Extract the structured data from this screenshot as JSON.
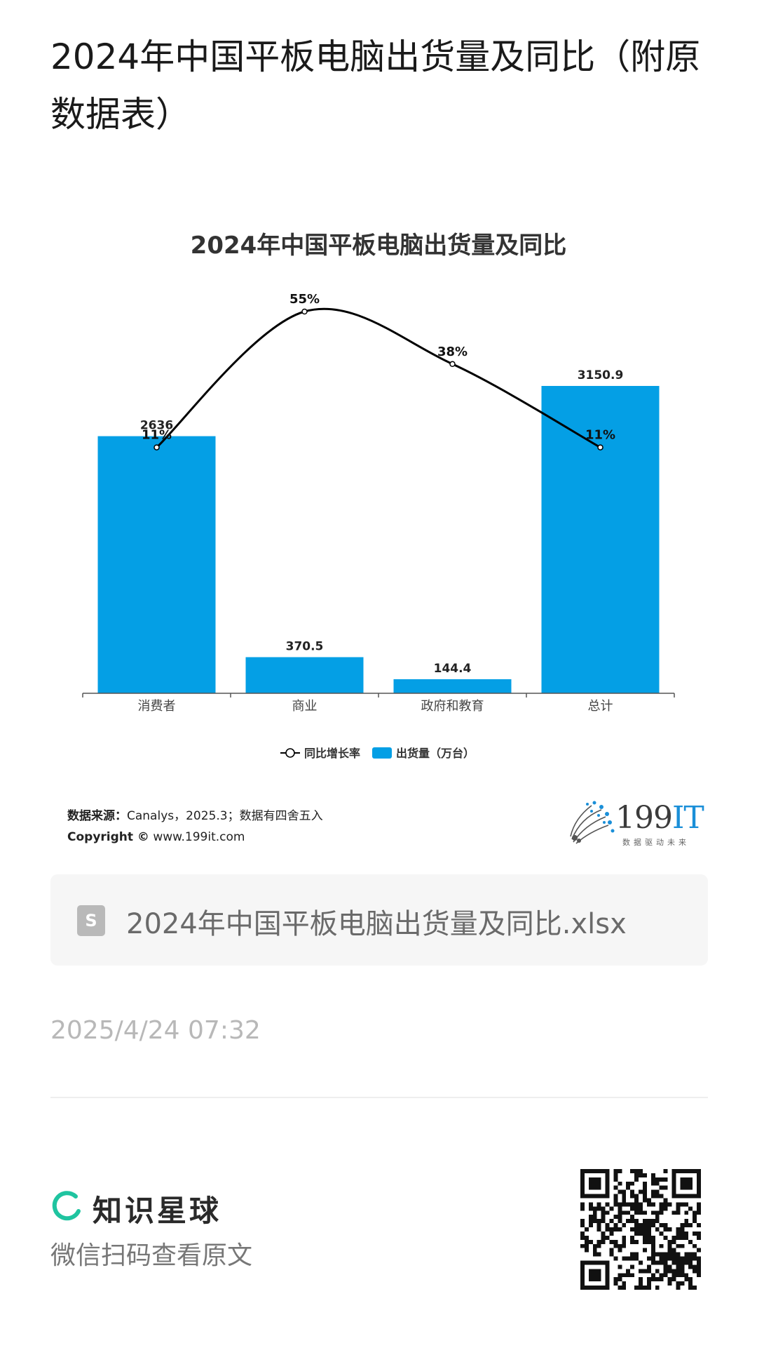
{
  "page": {
    "title": "2024年中国平板电脑出货量及同比（附原数据表）"
  },
  "chart_data": {
    "type": "bar",
    "title": "2024年中国平板电脑出货量及同比",
    "categories": [
      "消费者",
      "商业",
      "政府和教育",
      "总计"
    ],
    "series": [
      {
        "name": "出货量（万台）",
        "type": "bar",
        "values": [
          2636,
          370.5,
          144.4,
          3150.9
        ],
        "labels": [
          "2636",
          "370.5",
          "144.4",
          "3150.9"
        ],
        "color": "#049fe5"
      },
      {
        "name": "同比增长率",
        "type": "line",
        "values": [
          11,
          55,
          38,
          11
        ],
        "labels": [
          "11%",
          "55%",
          "38%",
          "11%"
        ],
        "color": "#000000"
      }
    ],
    "legend": {
      "position": "bottom",
      "items": [
        "同比增长率",
        "出货量（万台）"
      ]
    },
    "grid": false
  },
  "source": {
    "label": "数据来源：",
    "text": "Canalys，2025.3；数据有四舍五入",
    "copyright_label": "Copyright ©",
    "copyright_url": "www.199it.com"
  },
  "brand": {
    "name_num": "199",
    "name_it": "IT",
    "tagline": "数据驱动未来"
  },
  "file": {
    "name": "2024年中国平板电脑出货量及同比.xlsx",
    "icon": "spreadsheet-icon"
  },
  "timestamp": "2025/4/24 07:32",
  "footer": {
    "platform_name": "知识星球",
    "scan_text": "微信扫码查看原文",
    "logo_color": "#1fc4a0"
  }
}
